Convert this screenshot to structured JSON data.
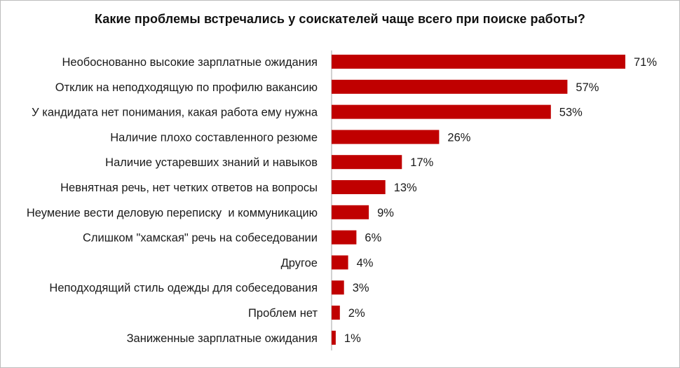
{
  "chart_data": {
    "type": "bar",
    "orientation": "horizontal",
    "title": "Какие проблемы встречались у соискателей чаще всего при поиске работы?",
    "xlabel": "",
    "ylabel": "",
    "xlim": [
      0,
      71
    ],
    "bar_color": "#c00000",
    "axis_color": "#a6a6a6",
    "categories": [
      "Необоснованно высокие зарплатные ожидания",
      "Отклик на неподходящую по профилю вакансию",
      "У кандидата нет понимания, какая работа ему нужна",
      "Наличие плохо составленного резюме",
      "Наличие устаревших знаний и навыков",
      "Невнятная речь, нет четких ответов на вопросы",
      "Неумение вести деловую переписку  и коммуникацию",
      "Слишком \"хамская\" речь на собеседовании",
      "Другое",
      "Неподходящий стиль одежды для собеседования",
      "Проблем нет",
      "Заниженные зарплатные ожидания"
    ],
    "values": [
      71,
      57,
      53,
      26,
      17,
      13,
      9,
      6,
      4,
      3,
      2,
      1
    ],
    "value_labels": [
      "71%",
      "57%",
      "53%",
      "26%",
      "17%",
      "13%",
      "9%",
      "6%",
      "4%",
      "3%",
      "2%",
      "1%"
    ]
  }
}
